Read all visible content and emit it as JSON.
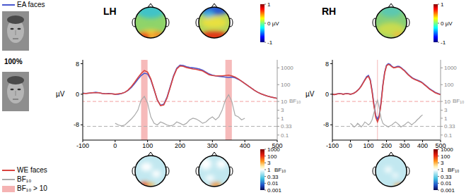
{
  "chart_data": [
    {
      "type": "line",
      "title": "LH",
      "x": [
        -100,
        -90,
        -80,
        -70,
        -60,
        -50,
        -40,
        -30,
        -20,
        -10,
        0,
        10,
        20,
        30,
        40,
        50,
        60,
        70,
        80,
        90,
        100,
        110,
        120,
        130,
        140,
        150,
        160,
        170,
        180,
        190,
        200,
        210,
        220,
        230,
        240,
        250,
        260,
        270,
        280,
        290,
        300,
        310,
        320,
        330,
        340,
        350,
        360,
        370,
        380,
        390,
        400,
        410,
        420,
        430,
        440,
        450,
        460,
        470,
        480,
        490,
        500
      ],
      "xlim": [
        -100,
        500
      ],
      "xticks": [
        -100,
        0,
        100,
        200,
        300,
        400,
        500
      ],
      "ylim": [
        -12,
        9
      ],
      "yticks": [
        -8,
        0,
        8
      ],
      "ylabel": "µV",
      "y2lim": [
        0.05,
        3000
      ],
      "y2ticks": [
        0.1,
        0.33,
        1,
        3,
        10,
        100,
        1000
      ],
      "y2label": "BF₁₀",
      "series": [
        {
          "name": "EA faces",
          "color": "#4857cf",
          "values": [
            0.3,
            0.2,
            0.3,
            0.4,
            0.5,
            0.4,
            0.2,
            0.1,
            0.2,
            0.1,
            0.0,
            0.0,
            0.2,
            0.5,
            1.0,
            1.8,
            2.8,
            3.9,
            4.9,
            5.5,
            5.3,
            3.8,
            1.2,
            -1.5,
            -2.9,
            -2.6,
            -0.8,
            2.0,
            4.8,
            6.8,
            7.6,
            7.5,
            7.2,
            7.0,
            6.9,
            6.8,
            6.6,
            6.3,
            5.8,
            5.3,
            5.0,
            4.8,
            4.7,
            4.6,
            4.5,
            4.4,
            4.5,
            4.3,
            3.9,
            3.4,
            2.8,
            2.2,
            1.6,
            1.0,
            0.5,
            0.1,
            -0.2,
            -0.5,
            -0.7,
            -0.9,
            -1.1
          ]
        },
        {
          "name": "WE faces",
          "color": "#d9433f",
          "values": [
            0.2,
            0.2,
            0.3,
            0.4,
            0.4,
            0.4,
            0.2,
            0.1,
            0.1,
            0.1,
            0.0,
            0.1,
            0.2,
            0.5,
            1.1,
            2.0,
            3.1,
            4.3,
            5.4,
            6.2,
            5.8,
            4.0,
            1.3,
            -1.5,
            -3.0,
            -2.8,
            -1.0,
            1.8,
            4.6,
            6.6,
            7.4,
            7.3,
            7.0,
            6.8,
            6.6,
            6.5,
            6.3,
            6.1,
            5.6,
            5.1,
            4.9,
            4.8,
            4.8,
            4.8,
            4.9,
            5.0,
            4.8,
            4.5,
            4.0,
            3.4,
            2.8,
            2.2,
            1.6,
            1.0,
            0.5,
            0.1,
            -0.2,
            -0.5,
            -0.7,
            -0.9,
            -1.1
          ]
        },
        {
          "name": "BF₁₀",
          "color": "#a9a9a9",
          "axis": "y2",
          "values": [
            null,
            null,
            null,
            null,
            null,
            null,
            null,
            null,
            null,
            null,
            0.5,
            0.4,
            0.35,
            0.4,
            0.6,
            0.9,
            1.5,
            3,
            12,
            20,
            8,
            1.2,
            0.5,
            0.4,
            0.6,
            0.5,
            0.4,
            0.35,
            0.4,
            0.6,
            0.5,
            0.4,
            0.5,
            0.8,
            1,
            0.9,
            0.7,
            0.5,
            0.6,
            0.9,
            1.2,
            0.8,
            1.2,
            3,
            12,
            25,
            10,
            1.5,
            1.2,
            0.8,
            1.0,
            null,
            null,
            null,
            null,
            null,
            null,
            null,
            null,
            null,
            null
          ]
        }
      ],
      "reference_lines": [
        {
          "value": 10,
          "axis": "y2",
          "color": "#f2a0a0",
          "line_style": "dashed"
        },
        {
          "value": 0.33,
          "axis": "y2",
          "color": "#b0b0b0",
          "line_style": "dashed"
        }
      ],
      "shaded": {
        "label": "BF₁₀ > 10",
        "color": "#f5b3b3",
        "ranges": [
          [
            80,
            100
          ],
          [
            340,
            360
          ]
        ]
      },
      "stimulus_label": "100%",
      "topo_colorbar": {
        "ticks": [
          1,
          {
            "value": 0,
            "label": "0 µV"
          },
          -1
        ]
      },
      "bf_colorbar": {
        "label": "BF₁₀",
        "ticks": [
          1000,
          100,
          3,
          1,
          0.33,
          0.01,
          0.001
        ]
      }
    },
    {
      "type": "line",
      "title": "RH",
      "x": [
        -100,
        -90,
        -80,
        -70,
        -60,
        -50,
        -40,
        -30,
        -20,
        -10,
        0,
        10,
        20,
        30,
        40,
        50,
        60,
        70,
        80,
        90,
        100,
        110,
        120,
        130,
        140,
        150,
        160,
        170,
        180,
        190,
        200,
        210,
        220,
        230,
        240,
        250,
        260,
        270,
        280,
        290,
        300,
        310,
        320,
        330,
        340,
        350,
        360,
        370,
        380,
        390,
        400,
        410,
        420,
        430,
        440,
        450,
        460,
        470,
        480,
        490,
        500
      ],
      "xlim": [
        -100,
        500
      ],
      "xticks": [
        -100,
        0,
        100,
        200,
        300,
        400,
        500
      ],
      "ylim": [
        -12,
        9
      ],
      "yticks": [
        -8,
        0,
        8
      ],
      "ylabel": "µV",
      "y2lim": [
        0.05,
        3000
      ],
      "y2ticks": [
        0.1,
        0.33,
        1,
        3,
        10,
        100,
        1000
      ],
      "y2label": "BF₁₀",
      "series": [
        {
          "name": "EA faces",
          "color": "#4857cf",
          "values": [
            0,
            -0.1,
            0,
            0.1,
            0.2,
            0.1,
            0,
            0.1,
            0.2,
            0.1,
            0,
            0.1,
            0.3,
            0.6,
            1.0,
            1.5,
            2.2,
            3.0,
            3.8,
            4.6,
            4.9,
            3.8,
            1.0,
            -2.5,
            -5.5,
            -6.6,
            -5.5,
            -2.0,
            2.5,
            5.8,
            7.6,
            8.0,
            7.8,
            7.3,
            7.0,
            7.1,
            7.3,
            7.3,
            7.0,
            6.6,
            6.2,
            5.7,
            5.2,
            4.8,
            4.4,
            4.1,
            3.9,
            3.7,
            3.5,
            3.3,
            3.0,
            2.6,
            2.2,
            1.8,
            1.4,
            1.1,
            0.8,
            0.5,
            0.3,
            0.1,
            0
          ]
        },
        {
          "name": "WE faces",
          "color": "#d9433f",
          "values": [
            0,
            -0.1,
            0,
            0.1,
            0.1,
            0.1,
            0,
            0.1,
            0.1,
            0.1,
            0,
            0.1,
            0.3,
            0.6,
            1.0,
            1.5,
            2.1,
            2.9,
            3.7,
            4.4,
            4.7,
            3.6,
            0.7,
            -2.9,
            -6.0,
            -7.2,
            -6.0,
            -2.4,
            2.2,
            5.6,
            7.4,
            7.8,
            7.6,
            7.2,
            6.9,
            7.0,
            7.1,
            7.1,
            6.9,
            6.5,
            6.1,
            5.6,
            5.1,
            4.7,
            4.3,
            4.0,
            3.8,
            3.6,
            3.4,
            3.2,
            2.9,
            2.5,
            2.1,
            1.7,
            1.3,
            1.0,
            0.7,
            0.4,
            0.2,
            0.0,
            -0.1
          ]
        },
        {
          "name": "BF₁₀",
          "color": "#a9a9a9",
          "axis": "y2",
          "values": [
            null,
            null,
            null,
            null,
            null,
            null,
            null,
            null,
            null,
            null,
            0.5,
            0.4,
            0.3,
            0.35,
            0.5,
            0.4,
            0.3,
            0.4,
            0.6,
            0.5,
            0.4,
            0.5,
            0.8,
            2,
            6,
            12,
            4,
            1,
            0.5,
            0.4,
            0.35,
            0.3,
            0.35,
            0.4,
            0.5,
            0.6,
            0.5,
            0.4,
            0.3,
            0.35,
            0.4,
            0.5,
            0.6,
            0.5,
            0.4,
            0.5,
            0.6,
            0.8,
            1.0,
            1.3,
            1.6,
            null,
            null,
            null,
            null,
            null,
            null,
            null,
            null,
            null,
            null
          ]
        }
      ],
      "reference_lines": [
        {
          "value": 10,
          "axis": "y2",
          "color": "#f2a0a0",
          "line_style": "dashed"
        },
        {
          "value": 0.33,
          "axis": "y2",
          "color": "#b0b0b0",
          "line_style": "dashed"
        }
      ],
      "shaded": {
        "color": "#f5b3b3",
        "ranges": [
          [
            148,
            152
          ]
        ]
      },
      "topo_colorbar": {
        "ticks": [
          1,
          {
            "value": 0,
            "label": "0 µV"
          },
          -1
        ]
      },
      "bf_colorbar": {
        "label": "BF₁₀",
        "ticks": [
          1000,
          100,
          3,
          1,
          0.33,
          0.01,
          0.001
        ]
      }
    }
  ]
}
